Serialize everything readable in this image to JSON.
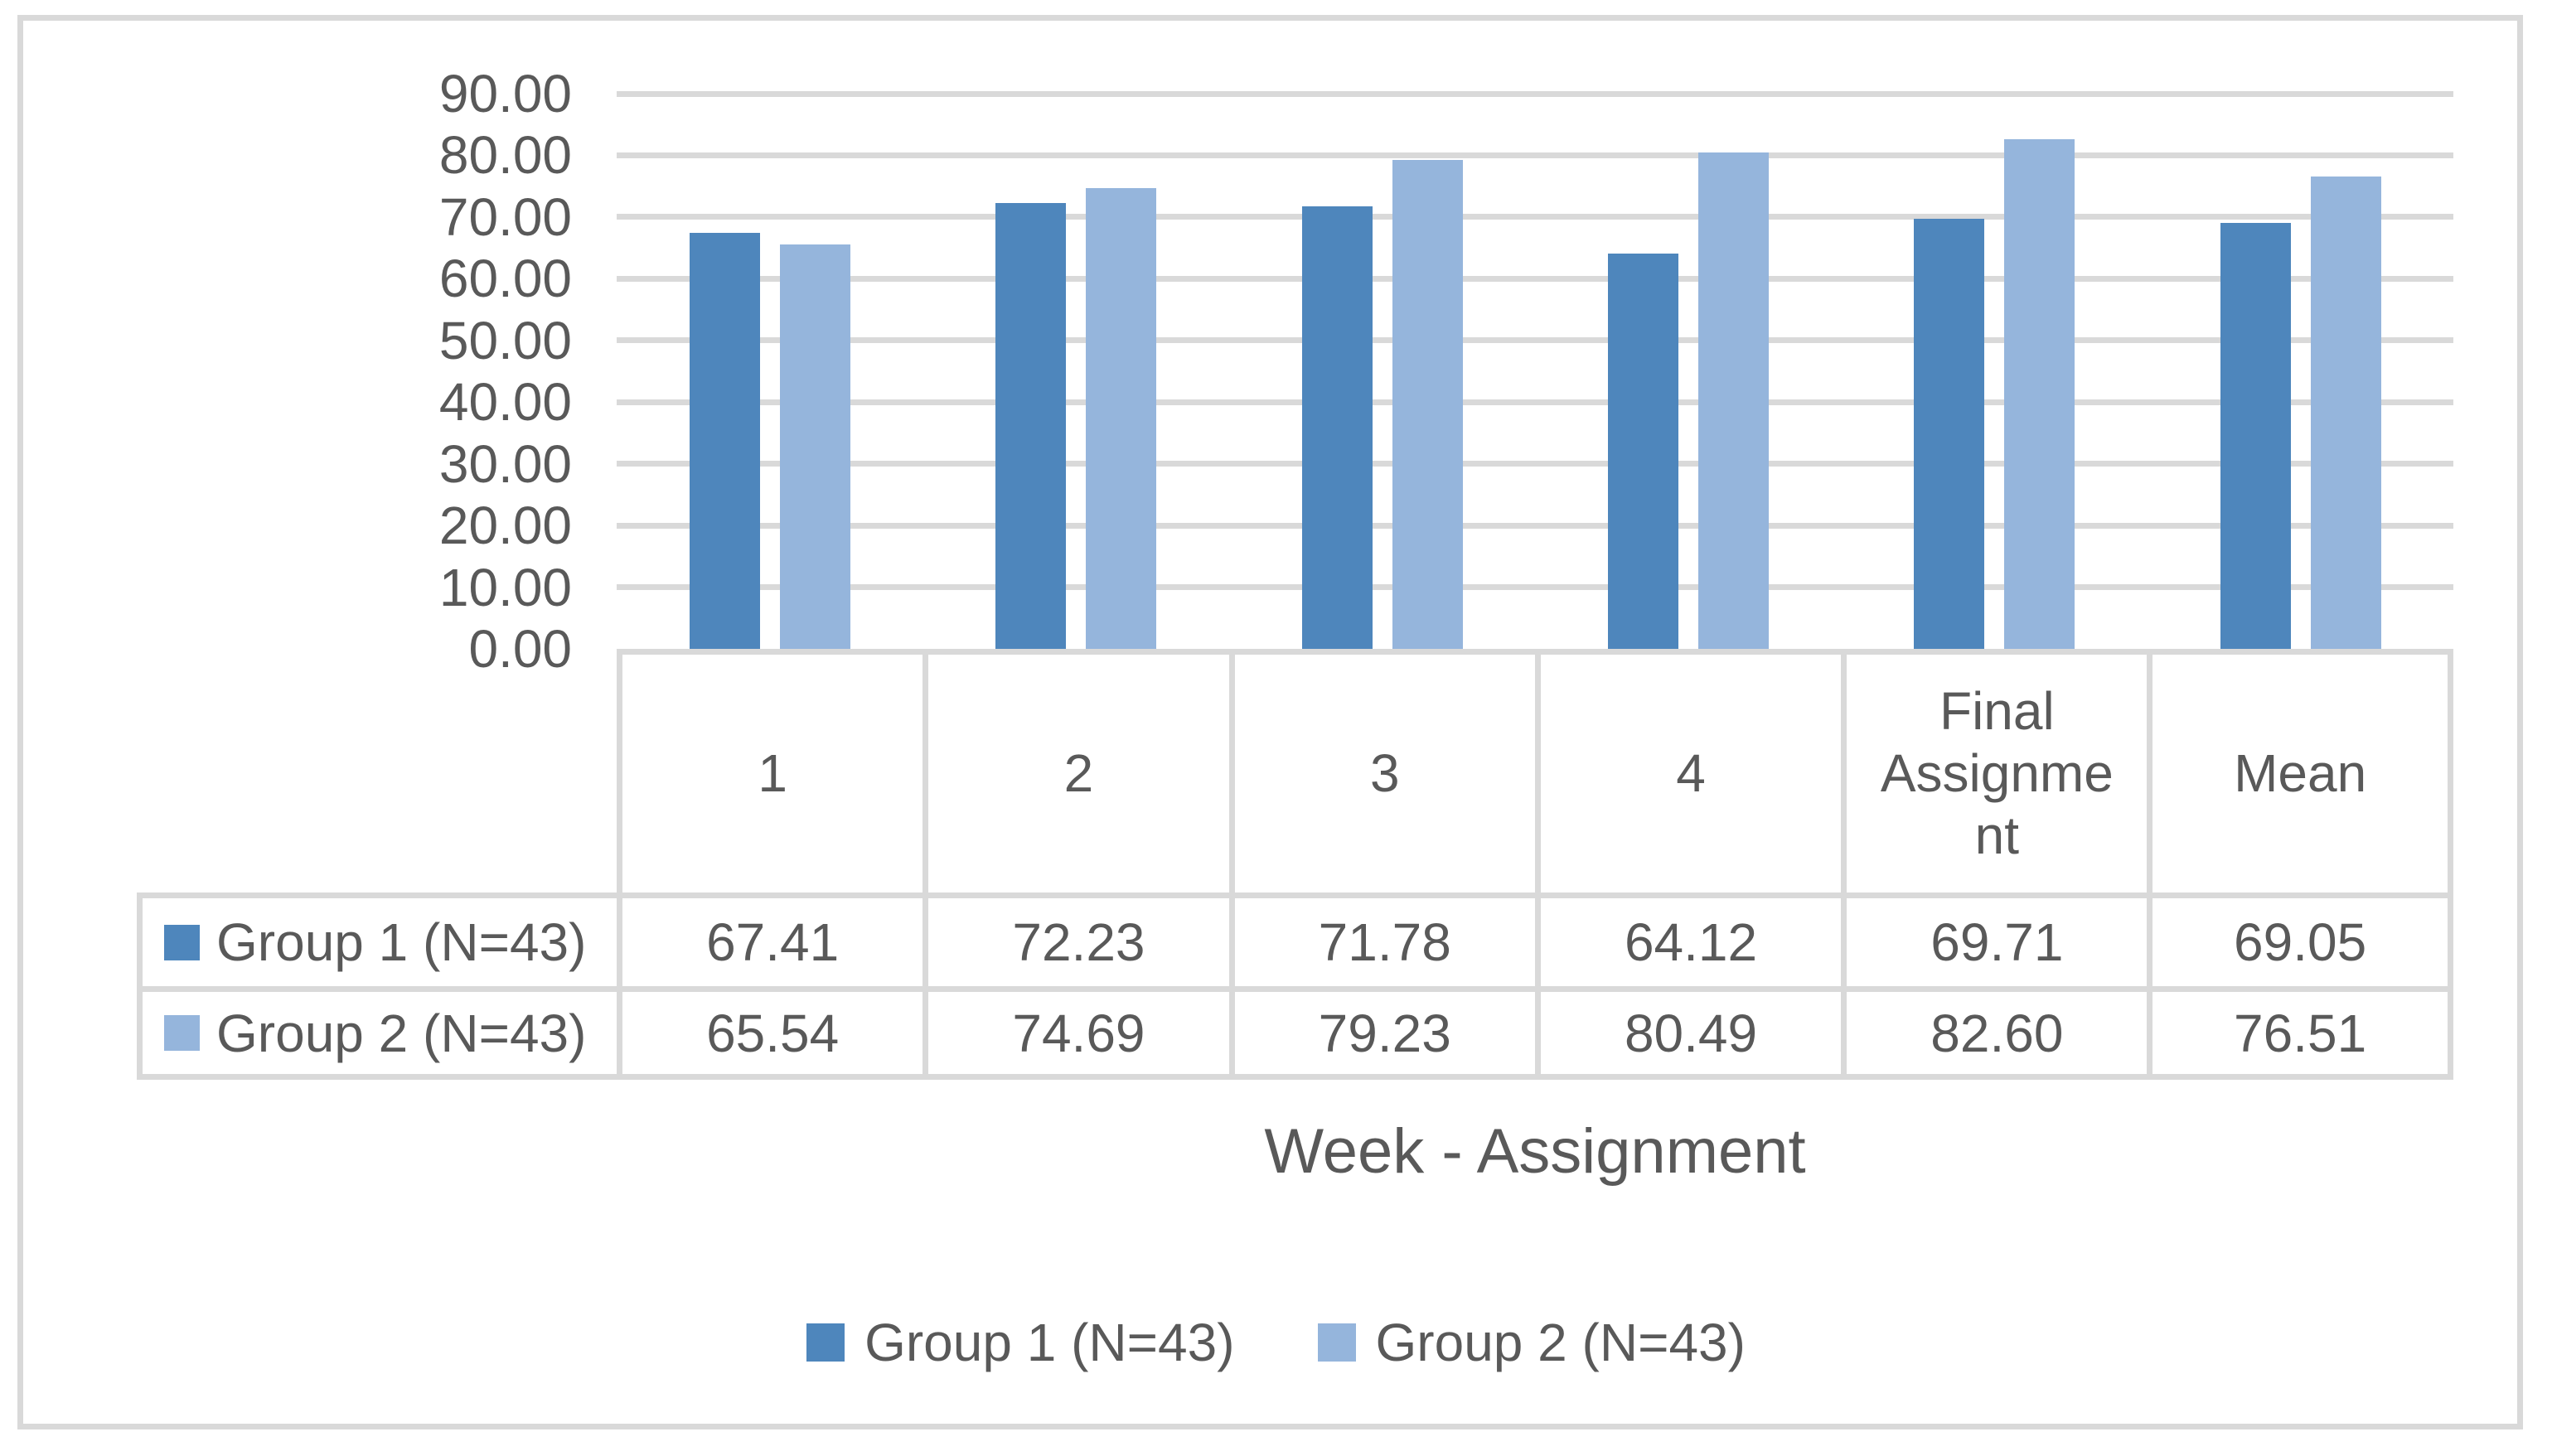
{
  "chart_data": {
    "type": "bar",
    "title": "",
    "categories": [
      "1",
      "2",
      "3",
      "4",
      "Final Assignment",
      "Mean"
    ],
    "series": [
      {
        "name": "Group 1 (N=43)",
        "color": "#4e86bc",
        "values": [
          67.41,
          72.23,
          71.78,
          64.12,
          69.71,
          69.05
        ]
      },
      {
        "name": "Group 2 (N=43)",
        "color": "#95b5dc",
        "values": [
          65.54,
          74.69,
          79.23,
          80.49,
          82.6,
          76.51
        ]
      }
    ],
    "xlabel": "Week - Assignment",
    "ylabel": "",
    "ylim": [
      0,
      90
    ],
    "ytick_step": 10,
    "ytick_labels": [
      "90.00",
      "80.00",
      "70.00",
      "60.00",
      "50.00",
      "40.00",
      "30.00",
      "20.00",
      "10.00",
      "0.00"
    ],
    "value_format": "0.00",
    "grid": true,
    "legend_position": "bottom",
    "data_table_shown": true,
    "legend_entries": [
      "Group 1 (N=43)",
      "Group 2 (N=43)"
    ]
  },
  "colors": {
    "series1": "#4e86bc",
    "series2": "#95b5dc",
    "gridline": "#d9d9d9",
    "table_border": "#d9d9d9",
    "frame_border": "#d9d9d9",
    "text": "#595959",
    "background": "#ffffff"
  }
}
